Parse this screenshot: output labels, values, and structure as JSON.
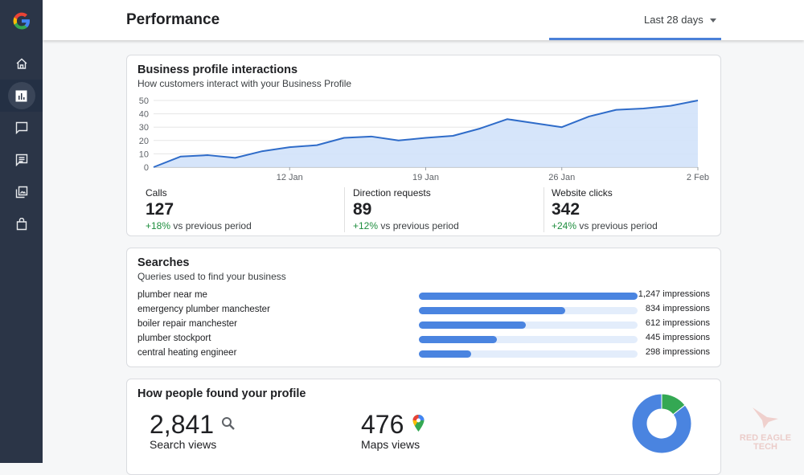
{
  "sidebar": {
    "items": [
      "home",
      "performance",
      "messages",
      "reviews",
      "photos",
      "products"
    ],
    "active": "performance"
  },
  "header": {
    "title": "Performance",
    "date_range": "Last 28 days"
  },
  "interactions": {
    "title": "Business profile interactions",
    "subtitle": "How customers interact with your Business Profile",
    "metrics": [
      {
        "label": "Calls",
        "value": "127",
        "change": "+18%",
        "suffix": " vs previous period"
      },
      {
        "label": "Direction requests",
        "value": "89",
        "change": "+12%",
        "suffix": " vs previous period"
      },
      {
        "label": "Website clicks",
        "value": "342",
        "change": "+24%",
        "suffix": " vs previous period"
      }
    ]
  },
  "chart_data": {
    "type": "area",
    "values": [
      0,
      8,
      9,
      7,
      12,
      15,
      16.5,
      22,
      23,
      20,
      22,
      23.5,
      29,
      36,
      33,
      30,
      38,
      43,
      44,
      46,
      50
    ],
    "x_ticks": [
      {
        "index": 5,
        "label": "12 Jan"
      },
      {
        "index": 10,
        "label": "19 Jan"
      },
      {
        "index": 15,
        "label": "26 Jan"
      },
      {
        "index": 20,
        "label": "2 Feb"
      }
    ],
    "y_ticks": [
      0,
      10,
      20,
      30,
      40,
      50
    ],
    "ylim": [
      0,
      50
    ],
    "grid": true,
    "color": "#2f6cc9",
    "fill": "#d2e2fa"
  },
  "searches": {
    "title": "Searches",
    "subtitle": "Queries used to find your business",
    "max": 1247,
    "rows": [
      {
        "query": "plumber near me",
        "impressions": 1247,
        "label": "1,247 impressions"
      },
      {
        "query": "emergency plumber manchester",
        "impressions": 834,
        "label": "834 impressions"
      },
      {
        "query": "boiler repair manchester",
        "impressions": 612,
        "label": "612 impressions"
      },
      {
        "query": "plumber stockport",
        "impressions": 445,
        "label": "445 impressions"
      },
      {
        "query": "central heating engineer",
        "impressions": 298,
        "label": "298 impressions"
      }
    ]
  },
  "found": {
    "title": "How people found your profile",
    "search": {
      "value": "2,841",
      "label": "Search views",
      "n": 2841,
      "color": "#4a84e0"
    },
    "maps": {
      "value": "476",
      "label": "Maps views",
      "n": 476,
      "color": "#34a853"
    }
  },
  "watermark": "RED EAGLE TECH"
}
